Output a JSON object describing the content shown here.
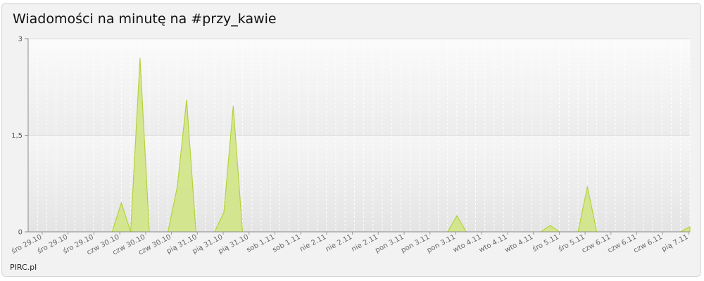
{
  "header": {
    "title": "Wiadomości na minutę na #przy_kawie"
  },
  "footer": {
    "credit": "PIRC.pl"
  },
  "colors": {
    "area_fill": "#d2e485",
    "area_stroke": "#b4d23a",
    "grid": "#d9d9d9"
  },
  "chart_data": {
    "type": "area",
    "title": "Wiadomości na minutę na #przy_kawie",
    "xlabel": "",
    "ylabel": "",
    "ylim": [
      0,
      3
    ],
    "yticks": [
      0,
      1.5,
      3
    ],
    "ytick_labels": [
      "0",
      "1,5",
      "3"
    ],
    "grid": true,
    "legend": "none",
    "x_tick_labels": [
      "śro 29.10",
      "śro 29.10",
      "śro 29.10",
      "czw 30.10",
      "czw 30.10",
      "czw 30.10",
      "pią 31.10",
      "pią 31.10",
      "pią 31.10",
      "sob 1.11",
      "sob 1.11",
      "nie 2.11",
      "nie 2.11",
      "nie 2.11",
      "pon 3.11",
      "pon 3.11",
      "pon 3.11",
      "wto 4.11",
      "wto 4.11",
      "wto 4.11",
      "śro 5.11",
      "śro 5.11",
      "czw 6.11",
      "czw 6.11",
      "czw 6.11",
      "pią 7.11"
    ],
    "values": [
      0,
      0,
      0,
      0,
      0,
      0,
      0,
      0,
      0,
      0,
      0.45,
      0,
      2.7,
      0,
      0,
      0,
      0.7,
      2.05,
      0,
      0,
      0,
      0.3,
      1.95,
      0,
      0,
      0,
      0,
      0,
      0,
      0,
      0,
      0,
      0,
      0,
      0,
      0,
      0,
      0,
      0,
      0,
      0,
      0,
      0,
      0,
      0,
      0,
      0.25,
      0,
      0,
      0,
      0,
      0,
      0,
      0,
      0,
      0,
      0.1,
      0,
      0,
      0,
      0.7,
      0,
      0,
      0,
      0,
      0,
      0,
      0,
      0,
      0,
      0,
      0.08
    ]
  }
}
